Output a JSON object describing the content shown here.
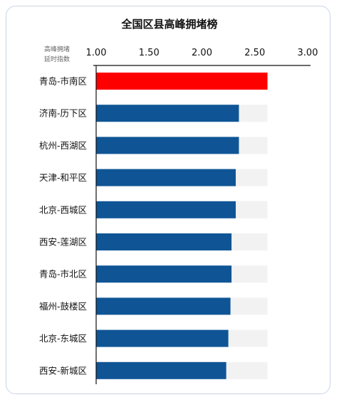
{
  "chart_data": {
    "type": "bar",
    "orientation": "horizontal",
    "title": "全国区县高峰拥堵榜",
    "ylabel_lines": [
      "高峰拥堵",
      "延时指数"
    ],
    "xlim": [
      1.0,
      3.0
    ],
    "xticks": [
      "1.00",
      "1.50",
      "2.00",
      "2.50",
      "3.00"
    ],
    "xtick_values": [
      1.0,
      1.5,
      2.0,
      2.5,
      3.0
    ],
    "track_max": 2.62,
    "categories": [
      "青岛-市南区",
      "济南-历下区",
      "杭州-西湖区",
      "天津-和平区",
      "北京-西城区",
      "西安-莲湖区",
      "青岛-市北区",
      "福州-鼓楼区",
      "北京-东城区",
      "西安-新城区"
    ],
    "values": [
      2.62,
      2.35,
      2.35,
      2.32,
      2.32,
      2.28,
      2.28,
      2.27,
      2.25,
      2.23
    ],
    "highlight_index": 0,
    "colors": {
      "highlight": "#ff0000",
      "bar": "#0f5596",
      "track": "#f2f2f2",
      "axis": "#111111"
    },
    "grid": false
  }
}
